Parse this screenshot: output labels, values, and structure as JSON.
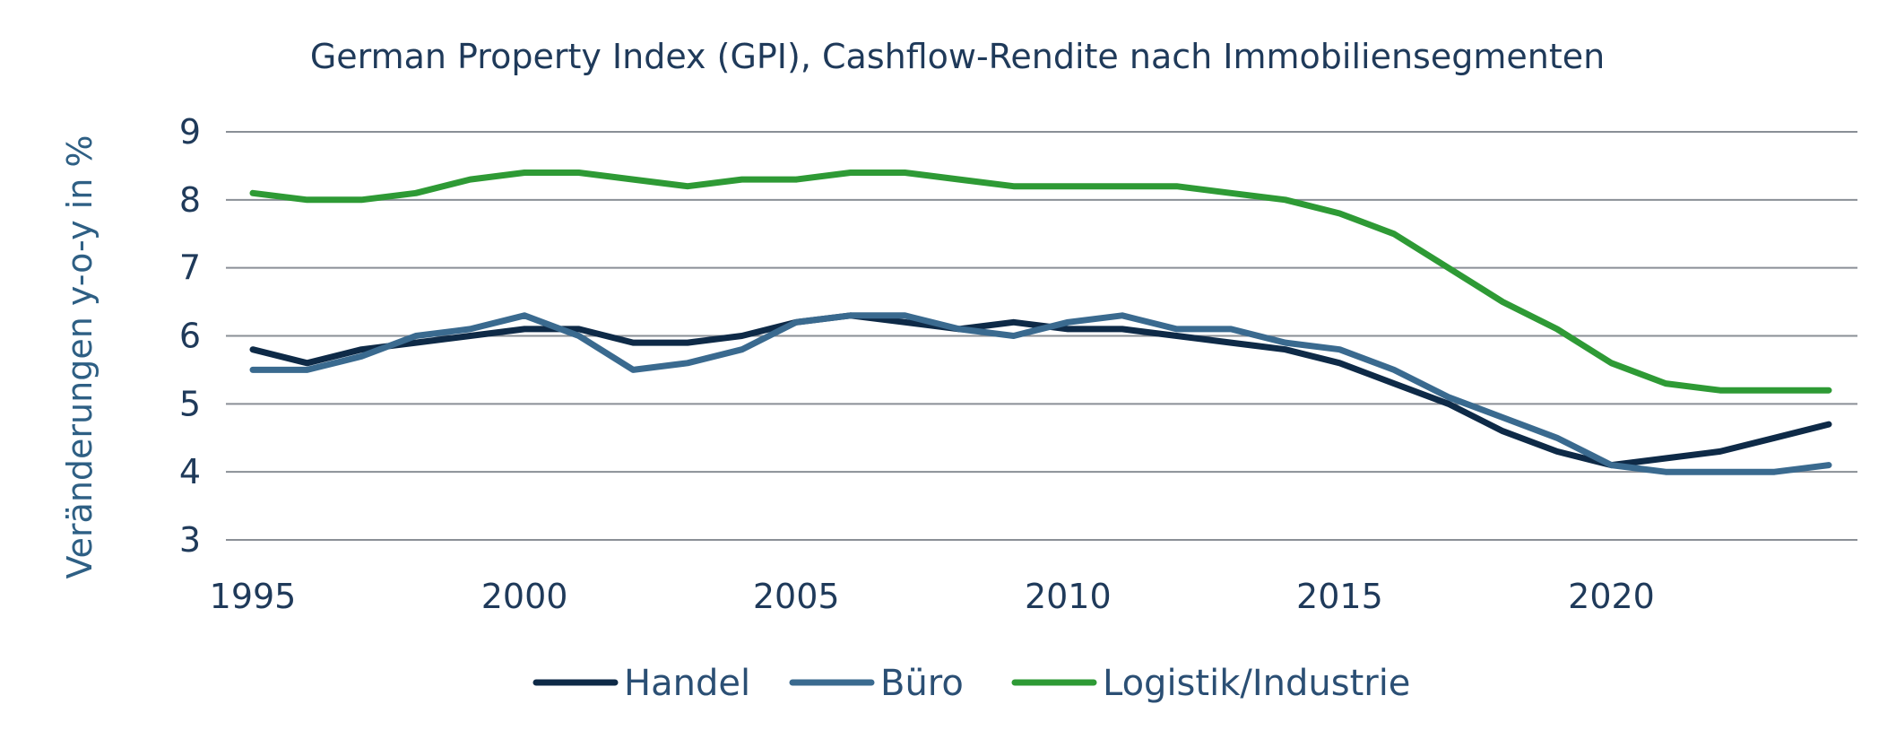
{
  "chart_data": {
    "type": "line",
    "title": "German Property Index (GPI), Cashflow-Rendite nach Immobiliensegmenten",
    "xlabel": "",
    "ylabel": "Veränderungen y-o-y in %",
    "xlim": [
      1995,
      2024
    ],
    "ylim": [
      3,
      9
    ],
    "x_ticks": [
      1995,
      2000,
      2005,
      2010,
      2015,
      2020
    ],
    "y_ticks": [
      3,
      4,
      5,
      6,
      7,
      8,
      9
    ],
    "grid": true,
    "legend_position": "bottom",
    "x": [
      1995,
      1996,
      1997,
      1998,
      1999,
      2000,
      2001,
      2002,
      2003,
      2004,
      2005,
      2006,
      2007,
      2008,
      2009,
      2010,
      2011,
      2012,
      2013,
      2014,
      2015,
      2016,
      2017,
      2018,
      2019,
      2020,
      2021,
      2022,
      2023,
      2024
    ],
    "series": [
      {
        "name": "Handel",
        "color": "#0e2a47",
        "values": [
          5.8,
          5.6,
          5.8,
          5.9,
          6.0,
          6.1,
          6.1,
          5.9,
          5.9,
          6.0,
          6.2,
          6.3,
          6.2,
          6.1,
          6.2,
          6.1,
          6.1,
          6.0,
          5.9,
          5.8,
          5.6,
          5.3,
          5.0,
          4.6,
          4.3,
          4.1,
          4.2,
          4.3,
          4.5,
          4.7
        ]
      },
      {
        "name": "Büro",
        "color": "#3a6a8f",
        "values": [
          5.5,
          5.5,
          5.7,
          6.0,
          6.1,
          6.3,
          6.0,
          5.5,
          5.6,
          5.8,
          6.2,
          6.3,
          6.3,
          6.1,
          6.0,
          6.2,
          6.3,
          6.1,
          6.1,
          5.9,
          5.8,
          5.5,
          5.1,
          4.8,
          4.5,
          4.1,
          4.0,
          4.0,
          4.0,
          4.1
        ]
      },
      {
        "name": "Logistik/Industrie",
        "color": "#2e9a35",
        "values": [
          8.1,
          8.0,
          8.0,
          8.1,
          8.3,
          8.4,
          8.4,
          8.3,
          8.2,
          8.3,
          8.3,
          8.4,
          8.4,
          8.3,
          8.2,
          8.2,
          8.2,
          8.2,
          8.1,
          8.0,
          7.8,
          7.5,
          7.0,
          6.5,
          6.1,
          5.6,
          5.3,
          5.2,
          5.2,
          5.2
        ]
      }
    ]
  }
}
